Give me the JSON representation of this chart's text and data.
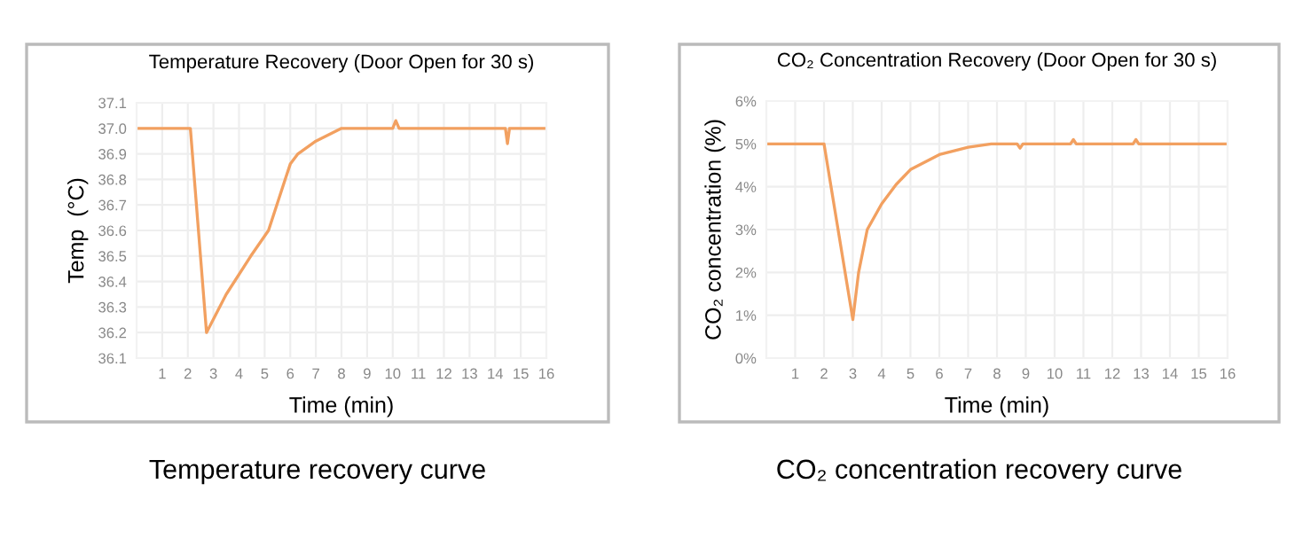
{
  "chart_data": [
    {
      "type": "line",
      "title": "Temperature Recovery (Door Open for 30 s)",
      "xlabel": "Time (min)",
      "ylabel": "Temp  (°C)",
      "x": [
        0,
        2.1,
        2.73,
        3.5,
        4.46,
        5.15,
        5.8,
        6.0,
        6.3,
        7.0,
        8.0,
        10.0,
        10.12,
        10.25,
        14.4,
        14.48,
        14.56,
        16
      ],
      "series": [
        {
          "color": "#f2a060",
          "values": [
            37.0,
            37.0,
            36.2,
            36.35,
            36.5,
            36.6,
            36.8,
            36.86,
            36.9,
            36.95,
            37.0,
            37.0,
            37.03,
            37.0,
            37.0,
            36.94,
            37.0,
            37.0
          ]
        }
      ],
      "xlim": [
        0,
        16
      ],
      "ylim": [
        36.1,
        37.1
      ],
      "xticks": [
        1,
        2,
        3,
        4,
        5,
        6,
        7,
        8,
        9,
        10,
        11,
        12,
        13,
        14,
        15,
        16
      ],
      "yticks": [
        36.1,
        36.2,
        36.3,
        36.4,
        36.5,
        36.6,
        36.7,
        36.8,
        36.9,
        {
          "value": 37,
          "label": "37.0"
        },
        37.1
      ],
      "grid": true,
      "marker": "none",
      "line_style": "solid",
      "annotations": [
        "Temperature recovery curve"
      ]
    },
    {
      "type": "line",
      "title": "CO₂ Concentration Recovery (Door Open for 30 s)",
      "xlabel": "Time (min)",
      "ylabel": "CO₂ concentration (%)",
      "x": [
        0,
        2.0,
        3.0,
        3.2,
        3.5,
        4.0,
        4.5,
        5.0,
        6.0,
        7.0,
        7.8,
        8.7,
        8.8,
        8.9,
        10.55,
        10.65,
        10.75,
        12.72,
        12.82,
        12.92,
        16
      ],
      "series": [
        {
          "color": "#f2a060",
          "values": [
            5,
            5,
            0.9,
            2.0,
            3.0,
            3.6,
            4.05,
            4.4,
            4.75,
            4.92,
            5,
            5,
            4.9,
            5,
            5,
            5.1,
            5,
            5,
            5.1,
            5,
            5
          ]
        }
      ],
      "xlim": [
        0,
        16
      ],
      "ylim": [
        0,
        6
      ],
      "xticks": [
        1,
        2,
        3,
        4,
        5,
        6,
        7,
        8,
        9,
        10,
        11,
        12,
        13,
        14,
        15,
        16
      ],
      "yticks": [
        {
          "value": 0,
          "label": "0%"
        },
        {
          "value": 1,
          "label": "1%"
        },
        {
          "value": 2,
          "label": "2%"
        },
        {
          "value": 3,
          "label": "3%"
        },
        {
          "value": 4,
          "label": "4%"
        },
        {
          "value": 5,
          "label": "5%"
        },
        {
          "value": 6,
          "label": "6%"
        }
      ],
      "grid": true,
      "marker": "none",
      "line_style": "solid",
      "annotations": [
        "CO₂ concentration recovery curve"
      ]
    }
  ]
}
